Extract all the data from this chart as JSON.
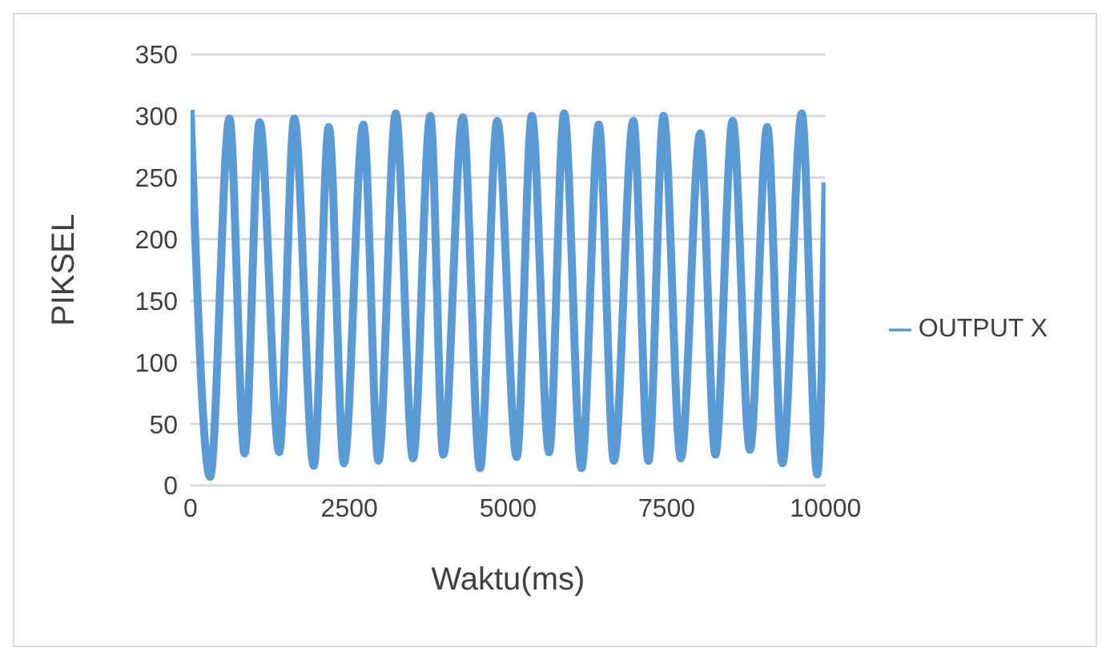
{
  "chart_data": {
    "type": "line",
    "xlabel": "Waktu(ms)",
    "ylabel": "PIKSEL",
    "xlim": [
      0,
      10000
    ],
    "xticks": [
      0,
      2500,
      5000,
      7500,
      10000
    ],
    "ylim": [
      0,
      350
    ],
    "yticks": [
      0,
      50,
      100,
      150,
      200,
      250,
      300,
      350
    ],
    "grid": "y",
    "legend": "right",
    "marker": "none",
    "line_style": "solid",
    "series": [
      {
        "name": "OUTPUT X",
        "color": "#5b9bd5",
        "x": [
          0,
          306,
          612,
          850,
          1088,
          1395,
          1633,
          1940,
          2177,
          2415,
          2721,
          2959,
          3231,
          3503,
          3776,
          3980,
          4286,
          4558,
          4830,
          5136,
          5374,
          5646,
          5884,
          6156,
          6429,
          6667,
          6973,
          7211,
          7449,
          7721,
          8027,
          8265,
          8537,
          8810,
          9082,
          9320,
          9626,
          9870,
          10000
        ],
        "values": [
          305,
          7,
          298,
          26,
          295,
          27,
          298,
          16,
          291,
          18,
          293,
          20,
          302,
          22,
          300,
          25,
          299,
          14,
          296,
          23,
          300,
          27,
          302,
          14,
          293,
          20,
          296,
          20,
          300,
          22,
          286,
          25,
          296,
          29,
          291,
          18,
          302,
          9,
          246
        ]
      }
    ]
  }
}
